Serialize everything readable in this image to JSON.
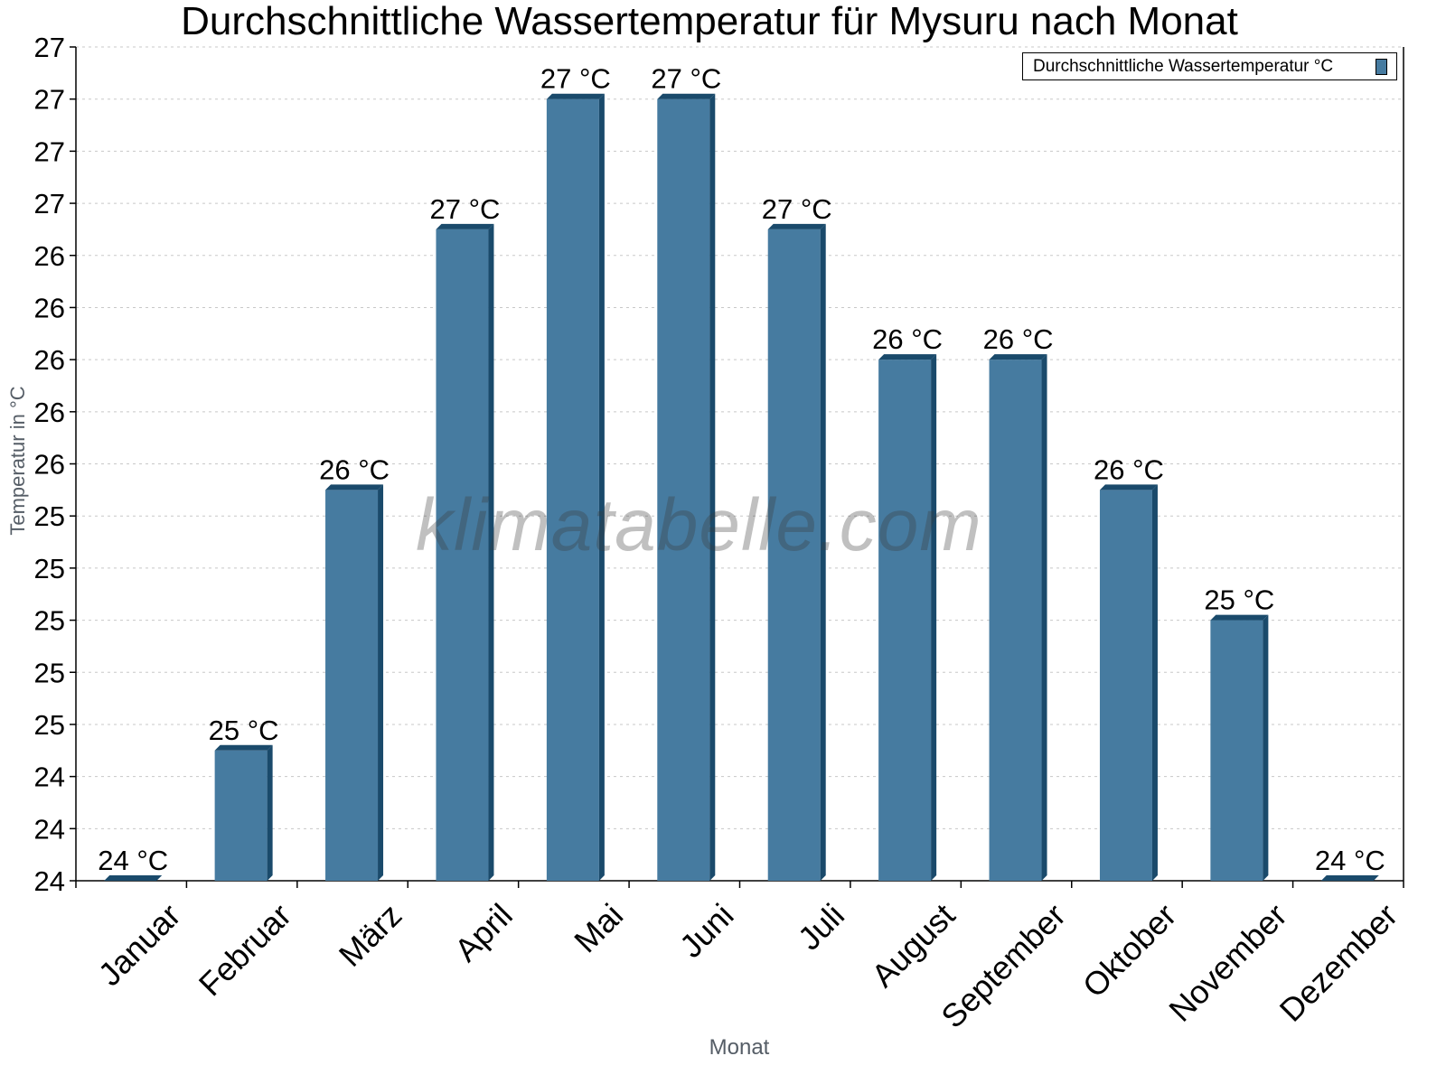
{
  "chart_data": {
    "type": "bar",
    "title": "Durchschnittliche Wassertemperatur für Mysuru nach Monat",
    "xlabel": "Monat",
    "ylabel": "Temperatur in °C",
    "categories": [
      "Januar",
      "Februar",
      "März",
      "April",
      "Mai",
      "Juni",
      "Juli",
      "August",
      "September",
      "Oktober",
      "November",
      "Dezember"
    ],
    "series": [
      {
        "name": "Durchschnittliche Wassertemperatur °C",
        "color": "#467ba0",
        "values": [
          24.0,
          24.5,
          25.5,
          26.5,
          27.0,
          27.0,
          26.5,
          26.0,
          26.0,
          25.5,
          25.0,
          24.0
        ],
        "data_labels": [
          "24 °C",
          "25 °C",
          "26 °C",
          "27 °C",
          "27 °C",
          "27 °C",
          "27 °C",
          "26 °C",
          "26 °C",
          "26 °C",
          "25 °C",
          "24 °C"
        ]
      }
    ],
    "ylim": [
      24.0,
      27.2
    ],
    "yticks": [
      24.0,
      24.2,
      24.4,
      24.6,
      24.8,
      25.0,
      25.2,
      25.4,
      25.6,
      25.8,
      26.0,
      26.2,
      26.4,
      26.6,
      26.8,
      27.0,
      27.2
    ],
    "ytick_labels": [
      "24",
      "24",
      "24",
      "25",
      "25",
      "25",
      "25",
      "25",
      "26",
      "26",
      "26",
      "26",
      "26",
      "27",
      "27",
      "27",
      "27"
    ],
    "grid": true,
    "legend_position": "top-right",
    "watermark": "klimatabelle.com"
  },
  "colors": {
    "bar_front": "#467ba0",
    "bar_side": "#1a4a6b",
    "grid": "#c8c8c8",
    "axis": "#000000"
  }
}
